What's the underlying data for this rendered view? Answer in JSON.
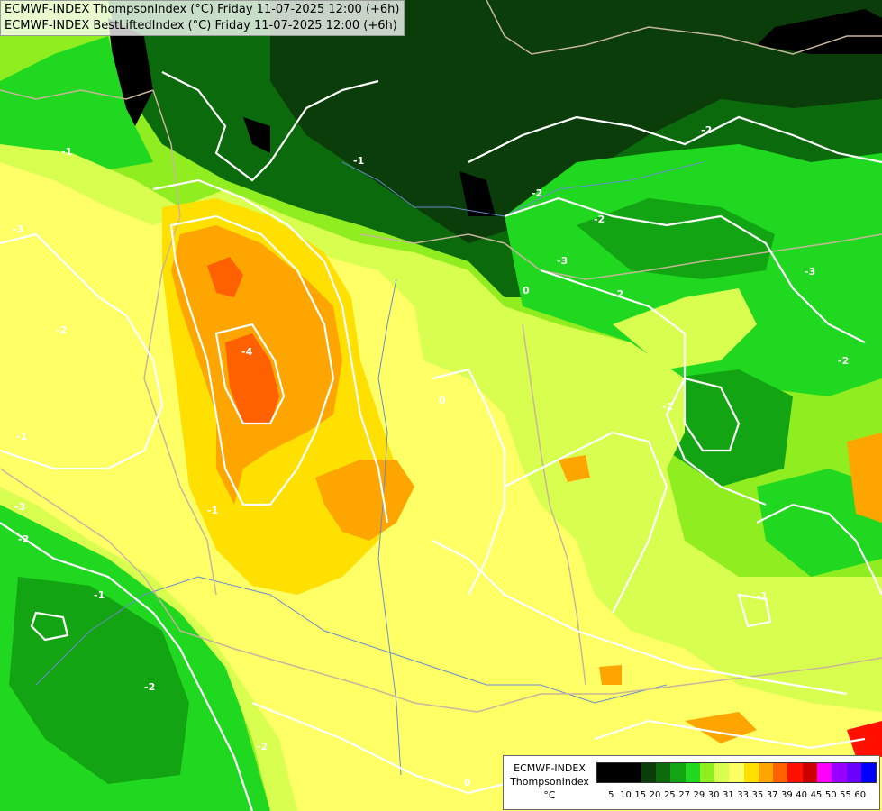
{
  "header": {
    "line1": "ECMWF-INDEX ThompsonIndex (°C) Friday 11-07-2025 12:00 (+6h)",
    "line2": "ECMWF-INDEX BestLiftedIndex (°C) Friday 11-07-2025 12:00 (+6h)"
  },
  "legend": {
    "title_lines": [
      "ECMWF-INDEX",
      "ThompsonIndex",
      "°C"
    ],
    "ticks": [
      "5",
      "10",
      "15",
      "20",
      "25",
      "27",
      "29",
      "30",
      "31",
      "33",
      "35",
      "37",
      "39",
      "40",
      "45",
      "50",
      "55",
      "60"
    ],
    "colors": [
      "#000000",
      "#000000",
      "#000000",
      "#0a3d0a",
      "#0b6a0b",
      "#12a412",
      "#20d820",
      "#90ee20",
      "#d8ff50",
      "#ffff66",
      "#ffe000",
      "#ffa500",
      "#ff6000",
      "#ff1000",
      "#cc0000",
      "#ff00ff",
      "#9900ff",
      "#6a00ff",
      "#0000ff"
    ]
  },
  "contour_labels": [
    "-1",
    "-2",
    "-2",
    "-2",
    "-3",
    "-3",
    "-4",
    "-2",
    "-2",
    "-3",
    "-2",
    "-2",
    "-3",
    "-2",
    "0",
    "0",
    "0",
    "-1",
    "-2",
    "-1",
    "-1",
    "-2",
    "-1",
    "-1"
  ],
  "colors": {
    "darkest": "#000000",
    "dark_green": "#0a3d0a",
    "green": "#12a412",
    "bright_green": "#20d820",
    "lime": "#90ee20",
    "pale_yellow": "#d8ff50",
    "yellow": "#ffff66",
    "gold": "#ffe000",
    "orange": "#ffa500",
    "red_orange": "#ff6000",
    "red": "#ff1000",
    "contour": "#ffffff",
    "border": "#c8b59a",
    "river": "#6a8ccd"
  }
}
